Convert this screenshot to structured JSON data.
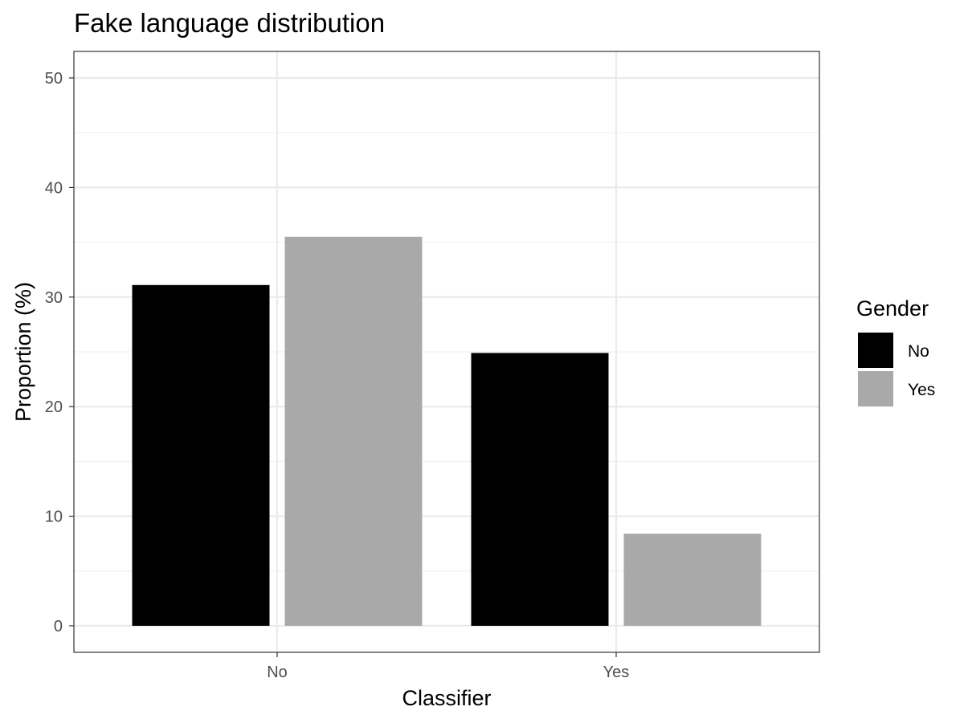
{
  "chart_data": {
    "type": "bar",
    "title": "Fake language distribution",
    "xlabel": "Classifier",
    "ylabel": "Proportion (%)",
    "categories": [
      "No",
      "Yes"
    ],
    "series": [
      {
        "name": "No",
        "color": "#000000",
        "values": [
          31.1,
          24.9
        ]
      },
      {
        "name": "Yes",
        "color": "#a9a9a9",
        "values": [
          35.5,
          8.4
        ]
      }
    ],
    "ylim": [
      0,
      52.4
    ],
    "yticks": [
      0,
      10,
      20,
      30,
      40,
      50
    ],
    "grid": true,
    "legend": {
      "title": "Gender",
      "placement": "right"
    }
  }
}
